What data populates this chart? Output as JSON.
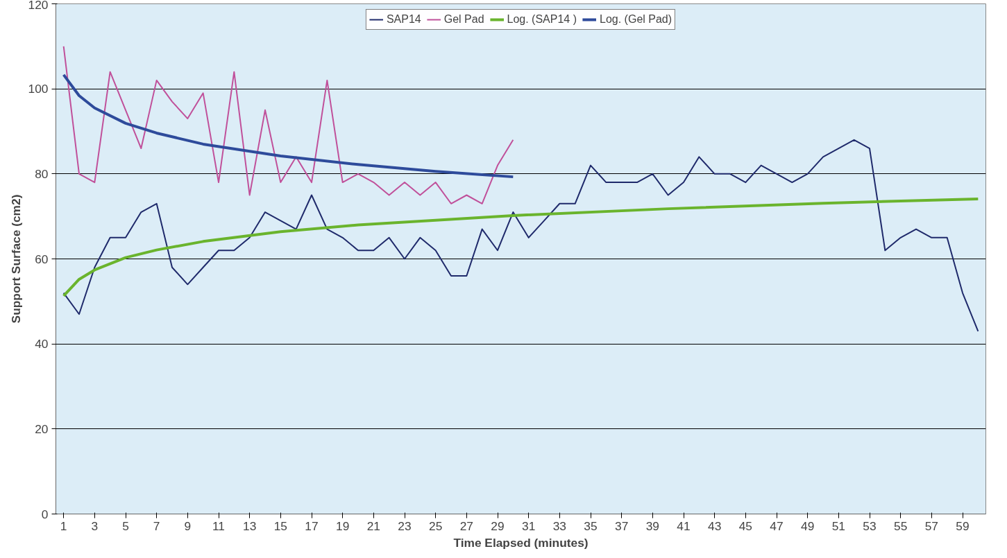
{
  "chart_data": {
    "type": "line",
    "xlabel": "Time Elapsed (minutes)",
    "ylabel": "Support Surface (cm2)",
    "x": [
      1,
      2,
      3,
      4,
      5,
      6,
      7,
      8,
      9,
      10,
      11,
      12,
      13,
      14,
      15,
      16,
      17,
      18,
      19,
      20,
      21,
      22,
      23,
      24,
      25,
      26,
      27,
      28,
      29,
      30,
      31,
      32,
      33,
      34,
      35,
      36,
      37,
      38,
      39,
      40,
      41,
      42,
      43,
      44,
      45,
      46,
      47,
      48,
      49,
      50,
      51,
      52,
      53,
      54,
      55,
      56,
      57,
      58,
      59,
      60
    ],
    "xlim": [
      0.5,
      60.5
    ],
    "xticks": [
      1,
      3,
      5,
      7,
      9,
      11,
      13,
      15,
      17,
      19,
      21,
      23,
      25,
      27,
      29,
      31,
      33,
      35,
      37,
      39,
      41,
      43,
      45,
      47,
      49,
      51,
      53,
      55,
      57,
      59
    ],
    "ylim": [
      0,
      120
    ],
    "yticks": [
      0,
      20,
      40,
      60,
      80,
      100,
      120
    ],
    "grid": "y",
    "legend": "top",
    "series": [
      {
        "name": "SAP14",
        "color": "#1f2a6b",
        "values": [
          52,
          47,
          58,
          65,
          65,
          71,
          73,
          58,
          54,
          58,
          62,
          62,
          65,
          71,
          69,
          67,
          75,
          67,
          65,
          62,
          62,
          65,
          60,
          65,
          62,
          56,
          56,
          67,
          62,
          71,
          65,
          69,
          73,
          73,
          82,
          78,
          78,
          78,
          80,
          75,
          78,
          84,
          80,
          80,
          78,
          82,
          80,
          78,
          80,
          84,
          86,
          88,
          86,
          62,
          65,
          67,
          65,
          65,
          52,
          43
        ]
      },
      {
        "name": "Gel Pad",
        "color": "#c0509a",
        "x": [
          1,
          2,
          3,
          4,
          5,
          6,
          7,
          8,
          9,
          10,
          11,
          12,
          13,
          14,
          15,
          16,
          17,
          18,
          19,
          20,
          21,
          22,
          23,
          24,
          25,
          26,
          27,
          28,
          29,
          30
        ],
        "values": [
          110,
          80,
          78,
          104,
          95,
          86,
          102,
          97,
          93,
          99,
          78,
          104,
          75,
          95,
          78,
          84,
          78,
          102,
          78,
          80,
          78,
          75,
          78,
          75,
          78,
          73,
          75,
          73,
          82,
          88
        ]
      },
      {
        "name": "Log. (SAP14 )",
        "color": "#6ab42d",
        "x": [
          1,
          2,
          3,
          5,
          7,
          10,
          15,
          20,
          30,
          40,
          50,
          60
        ],
        "values": [
          51.3,
          55.2,
          57.4,
          60.3,
          62.1,
          64.1,
          66.4,
          68.0,
          70.2,
          71.8,
          73.1,
          74.1
        ]
      },
      {
        "name": "Log. (Gel Pad)",
        "color": "#2e4b9b",
        "x": [
          1,
          2,
          3,
          5,
          7,
          10,
          15,
          20,
          25,
          30
        ],
        "values": [
          103.3,
          98.4,
          95.5,
          91.9,
          89.6,
          87.0,
          84.2,
          82.2,
          80.6,
          79.3
        ]
      }
    ]
  }
}
